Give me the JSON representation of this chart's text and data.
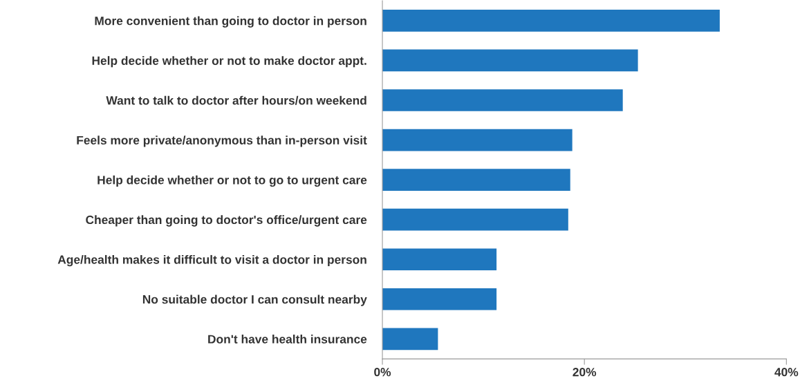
{
  "chart_data": {
    "type": "bar",
    "orientation": "horizontal",
    "categories": [
      "More convenient than going to doctor in person",
      "Help decide whether or not to make doctor appt.",
      "Want to talk to doctor after hours/on weekend",
      "Feels more private/anonymous than in-person visit",
      "Help decide whether or not to go to urgent care",
      "Cheaper than going to doctor's office/urgent care",
      "Age/health makes it difficult to visit a doctor in person",
      "No suitable doctor I can consult nearby",
      "Don't have health insurance"
    ],
    "values": [
      33.4,
      25.3,
      23.8,
      18.8,
      18.6,
      18.4,
      11.3,
      11.3,
      5.5
    ],
    "color": "#1f77be",
    "xlim": [
      0,
      40
    ],
    "xticks": [
      {
        "value": 0,
        "label": "0%"
      },
      {
        "value": 20,
        "label": "20%"
      },
      {
        "value": 40,
        "label": "40%"
      }
    ],
    "grid": false,
    "legend": false
  }
}
